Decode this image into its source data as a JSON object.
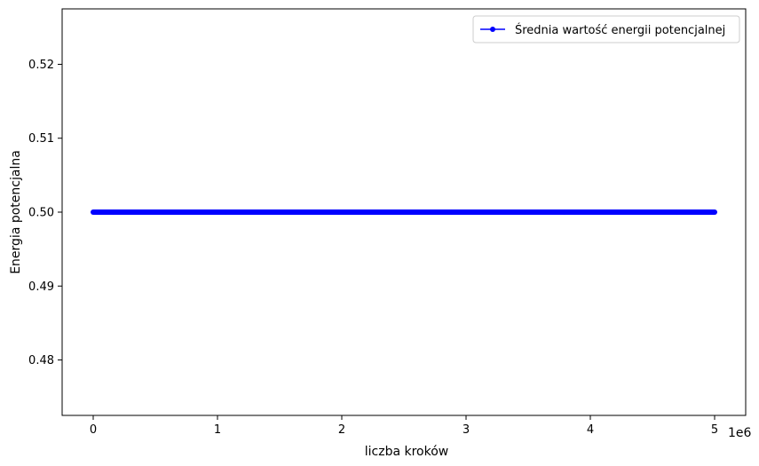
{
  "chart_data": {
    "type": "line",
    "xlabel": "liczba kroków",
    "ylabel": "Energia potencjalna",
    "x_offset_label": "1e6",
    "xlim": [
      -250000,
      5250000
    ],
    "ylim": [
      0.4725,
      0.5275
    ],
    "x_ticks": [
      0,
      1000000,
      2000000,
      3000000,
      4000000,
      5000000
    ],
    "x_tick_labels": [
      "0",
      "1",
      "2",
      "3",
      "4",
      "5"
    ],
    "y_ticks": [
      0.48,
      0.49,
      0.5,
      0.51,
      0.52
    ],
    "y_tick_labels": [
      "0.48",
      "0.49",
      "0.50",
      "0.51",
      "0.52"
    ],
    "grid": false,
    "legend_position": "top-right",
    "series": [
      {
        "name": "Średnia wartość energii potencjalnej",
        "color": "#0000ff",
        "marker": "circle",
        "x_range": [
          0,
          5000000
        ],
        "x_step": 1000,
        "y_constant": 0.5
      }
    ]
  }
}
